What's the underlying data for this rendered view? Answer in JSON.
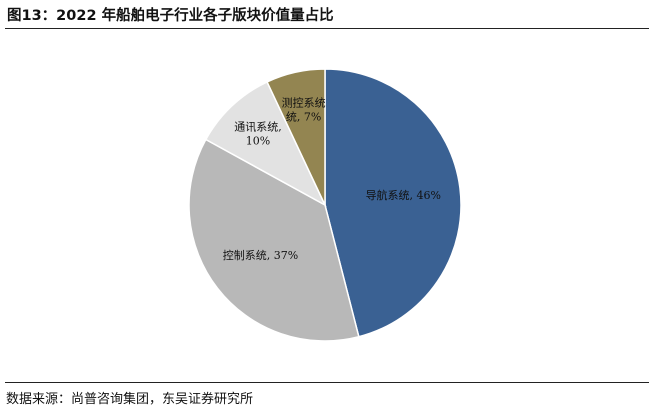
{
  "figure": {
    "title": "图13：2022 年船舶电子行业各子版块价值量占比",
    "source": "数据来源：尚普咨询集团，东吴证券研究所"
  },
  "chart_data": {
    "type": "pie",
    "title": "",
    "start": "12 o'clock",
    "direction": "clockwise",
    "slices": [
      {
        "label": "导航系统",
        "value": 46,
        "value_text": "46%",
        "color": "#3a6193",
        "label_lines": [
          "导航系统, 46%"
        ]
      },
      {
        "label": "控制系统",
        "value": 37,
        "value_text": "37%",
        "color": "#b8b8b8",
        "label_lines": [
          "控制系统, 37%"
        ]
      },
      {
        "label": "通讯系统",
        "value": 10,
        "value_text": "10%",
        "color": "#e2e2e2",
        "label_lines": [
          "通讯系统,",
          "10%"
        ]
      },
      {
        "label": "测控系统",
        "value": 7,
        "value_text": "7%",
        "color": "#938551",
        "label_lines": [
          "测控系统",
          "统, 7%"
        ]
      }
    ]
  }
}
